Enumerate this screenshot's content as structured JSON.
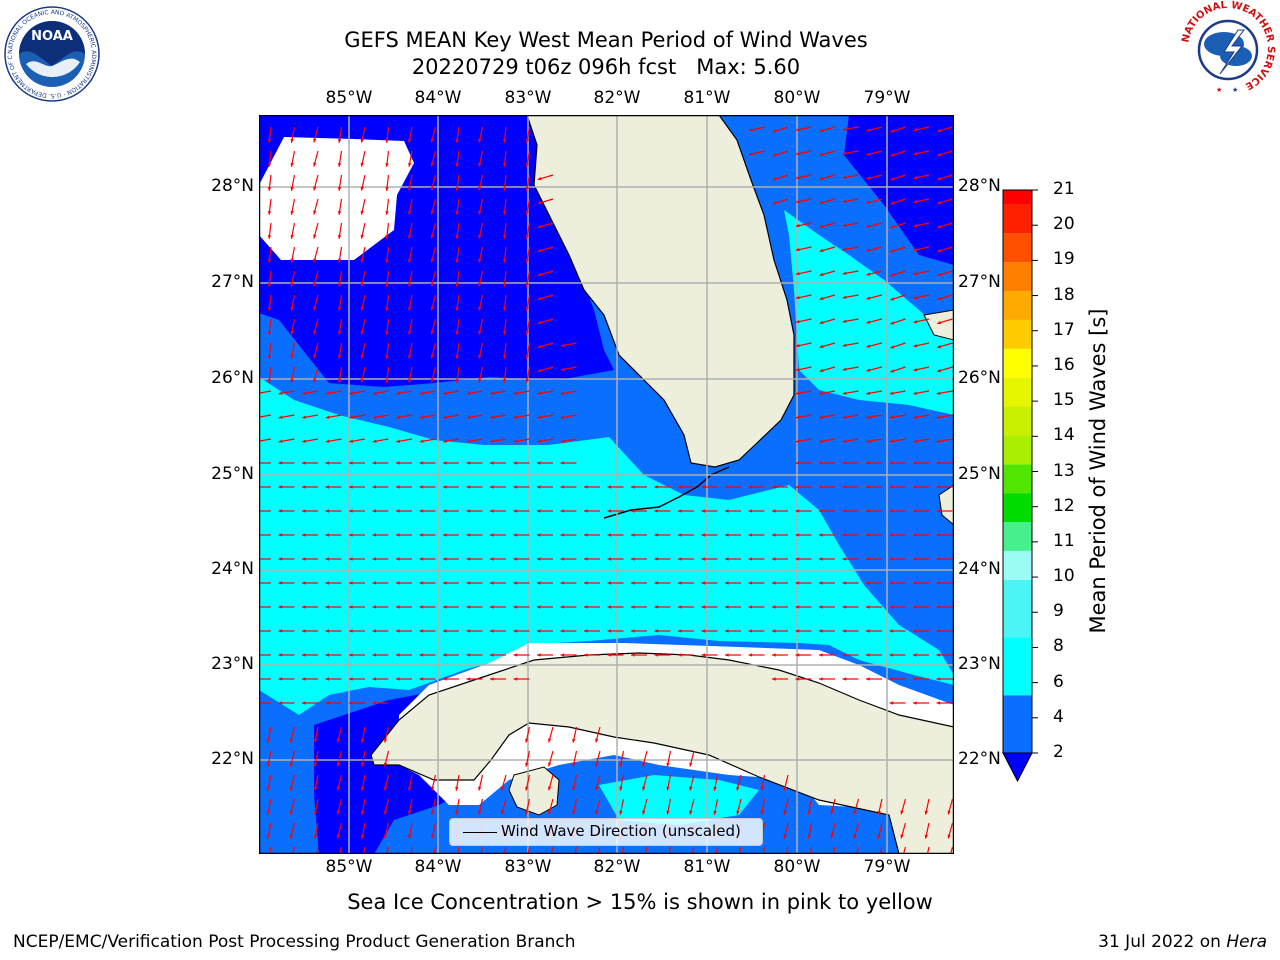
{
  "header": {
    "title_line1": "GEFS MEAN Key West Mean Period of Wind Waves",
    "title_line2": "20220729 t06z 096h fcst   Max: 5.60"
  },
  "logos": {
    "left": {
      "name": "noaa-logo",
      "text": "NOAA",
      "ring_text": "NATIONAL OCEANIC AND ATMOSPHERIC ADMINISTRATION · U.S. DEPARTMENT OF COMMERCE"
    },
    "right": {
      "name": "nws-logo",
      "ring_text": "NATIONAL WEATHER SERVICE"
    }
  },
  "map": {
    "lon_labels": [
      "85°W",
      "84°W",
      "83°W",
      "82°W",
      "81°W",
      "80°W",
      "79°W"
    ],
    "lat_labels": [
      "28°N",
      "27°N",
      "26°N",
      "25°N",
      "24°N",
      "23°N",
      "22°N"
    ],
    "legend_label": "Wind Wave Direction (unscaled)",
    "colors": {
      "land": "#eeeedc",
      "no_data": "#ffffff",
      "arrow": "#ff0000",
      "grid": "#b0b0b0"
    }
  },
  "colorbar": {
    "title": "Mean Period of Wind Waves [s]",
    "labels": [
      "21",
      "20",
      "19",
      "18",
      "17",
      "16",
      "15",
      "14",
      "13",
      "12",
      "11",
      "10",
      "9",
      "8",
      "6",
      "4",
      "2"
    ],
    "bins": [
      {
        "from": 2,
        "to": 4,
        "color": "#0a6eff"
      },
      {
        "from": 4,
        "to": 6,
        "color": "#00ffff"
      },
      {
        "from": 6,
        "to": 8,
        "color": "#4cf5f5"
      },
      {
        "from": 8,
        "to": 9,
        "color": "#9bfcf5"
      },
      {
        "from": 9,
        "to": 10,
        "color": "#46f08c"
      },
      {
        "from": 10,
        "to": 11,
        "color": "#00dc00"
      },
      {
        "from": 11,
        "to": 12,
        "color": "#50e600"
      },
      {
        "from": 12,
        "to": 13,
        "color": "#aaee00"
      },
      {
        "from": 13,
        "to": 14,
        "color": "#c8f000"
      },
      {
        "from": 14,
        "to": 15,
        "color": "#e6f500"
      },
      {
        "from": 15,
        "to": 16,
        "color": "#ffff00"
      },
      {
        "from": 16,
        "to": 17,
        "color": "#ffcc00"
      },
      {
        "from": 17,
        "to": 18,
        "color": "#ffaa00"
      },
      {
        "from": 18,
        "to": 19,
        "color": "#ff8000"
      },
      {
        "from": 19,
        "to": 20,
        "color": "#ff5000"
      },
      {
        "from": 20,
        "to": 21,
        "color": "#ff2000"
      },
      {
        "from": 21,
        "to": 21.5,
        "color": "#ff0000"
      }
    ],
    "under_color": "#0000ff"
  },
  "footer": {
    "sea_ice_note": "Sea Ice Concentration > 15% is shown in pink to yellow",
    "credit": "NCEP/EMC/Verification Post Processing Product Generation Branch",
    "run_date": "31 Jul 2022 on",
    "machine": "Hera"
  }
}
